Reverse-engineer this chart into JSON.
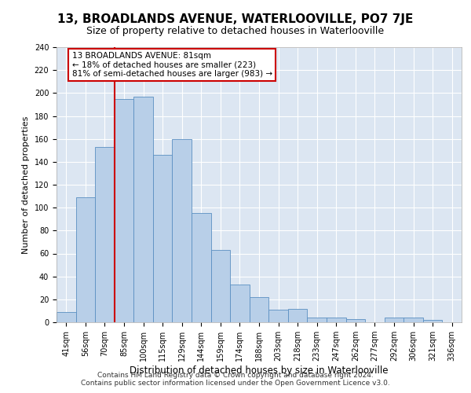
{
  "title": "13, BROADLANDS AVENUE, WATERLOOVILLE, PO7 7JE",
  "subtitle": "Size of property relative to detached houses in Waterlooville",
  "xlabel": "Distribution of detached houses by size in Waterlooville",
  "ylabel": "Number of detached properties",
  "categories": [
    "41sqm",
    "56sqm",
    "70sqm",
    "85sqm",
    "100sqm",
    "115sqm",
    "129sqm",
    "144sqm",
    "159sqm",
    "174sqm",
    "188sqm",
    "203sqm",
    "218sqm",
    "233sqm",
    "247sqm",
    "262sqm",
    "277sqm",
    "292sqm",
    "306sqm",
    "321sqm",
    "336sqm"
  ],
  "values": [
    9,
    109,
    153,
    195,
    197,
    146,
    160,
    95,
    63,
    33,
    22,
    11,
    12,
    4,
    4,
    3,
    0,
    4,
    4,
    2,
    0
  ],
  "bar_color": "#b8cfe8",
  "bar_edge_color": "#5a8fc2",
  "vline_color": "#cc0000",
  "vline_xindex": 2.5,
  "annotation_text": "13 BROADLANDS AVENUE: 81sqm\n← 18% of detached houses are smaller (223)\n81% of semi-detached houses are larger (983) →",
  "annotation_box_facecolor": "#ffffff",
  "annotation_box_edgecolor": "#cc0000",
  "ylim": [
    0,
    240
  ],
  "yticks": [
    0,
    20,
    40,
    60,
    80,
    100,
    120,
    140,
    160,
    180,
    200,
    220,
    240
  ],
  "plot_bg_color": "#dce6f2",
  "footer": "Contains HM Land Registry data © Crown copyright and database right 2024.\nContains public sector information licensed under the Open Government Licence v3.0.",
  "title_fontsize": 11,
  "subtitle_fontsize": 9,
  "ylabel_fontsize": 8,
  "xlabel_fontsize": 8.5,
  "tick_fontsize": 7,
  "footer_fontsize": 6.5,
  "ann_fontsize": 7.5
}
